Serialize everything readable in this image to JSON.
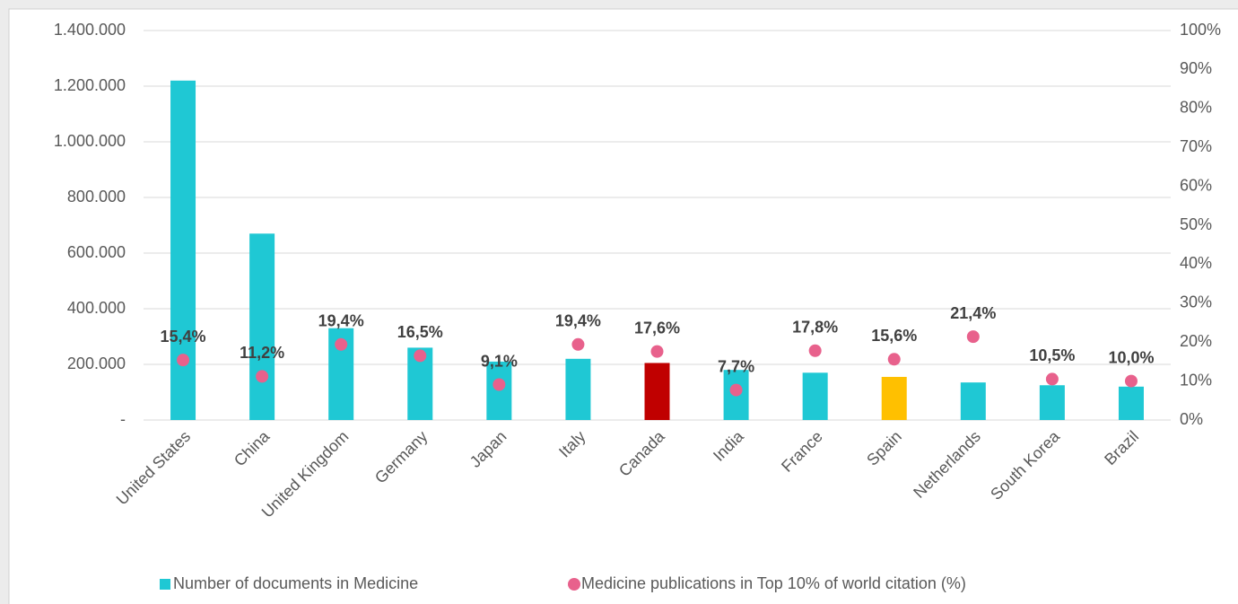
{
  "chart_data": {
    "type": "bar",
    "categories": [
      "United States",
      "China",
      "United Kingdom",
      "Germany",
      "Japan",
      "Italy",
      "Canada",
      "India",
      "France",
      "Spain",
      "Netherlands",
      "South Korea",
      "Brazil"
    ],
    "series": [
      {
        "name": "Number of documents in Medicine",
        "type": "bar",
        "color": "#1fc8d4",
        "colors": [
          "#1fc8d4",
          "#1fc8d4",
          "#1fc8d4",
          "#1fc8d4",
          "#1fc8d4",
          "#1fc8d4",
          "#c00000",
          "#1fc8d4",
          "#1fc8d4",
          "#ffc000",
          "#1fc8d4",
          "#1fc8d4",
          "#1fc8d4"
        ],
        "values": [
          1220000,
          670000,
          330000,
          260000,
          210000,
          220000,
          205000,
          180000,
          170000,
          155000,
          135000,
          125000,
          120000
        ]
      },
      {
        "name": "Medicine publications in Top 10% of world citation (%)",
        "type": "scatter",
        "axis": "y2",
        "color": "#e8618c",
        "values": [
          15.4,
          11.2,
          19.4,
          16.5,
          9.1,
          19.4,
          17.6,
          7.7,
          17.8,
          15.6,
          21.4,
          10.5,
          10.0
        ],
        "value_labels": [
          "15,4%",
          "11,2%",
          "19,4%",
          "16,5%",
          "9,1%",
          "19,4%",
          "17,6%",
          "7,7%",
          "17,8%",
          "15,6%",
          "21,4%",
          "10,5%",
          "10,0%"
        ]
      }
    ],
    "ylim": [
      0,
      1400000
    ],
    "yticks": [
      {
        "value": 0,
        "label": "-"
      },
      {
        "value": 200000,
        "label": "200.000"
      },
      {
        "value": 400000,
        "label": "400.000"
      },
      {
        "value": 600000,
        "label": "600.000"
      },
      {
        "value": 800000,
        "label": "800.000"
      },
      {
        "value": 1000000,
        "label": "1.000.000"
      },
      {
        "value": 1200000,
        "label": "1.200.000"
      },
      {
        "value": 1400000,
        "label": "1.400.000"
      }
    ],
    "y2lim": [
      0,
      100
    ],
    "y2ticks": [
      {
        "value": 0,
        "label": "0%"
      },
      {
        "value": 10,
        "label": "10%"
      },
      {
        "value": 20,
        "label": "20%"
      },
      {
        "value": 30,
        "label": "30%"
      },
      {
        "value": 40,
        "label": "40%"
      },
      {
        "value": 50,
        "label": "50%"
      },
      {
        "value": 60,
        "label": "60%"
      },
      {
        "value": 70,
        "label": "70%"
      },
      {
        "value": 80,
        "label": "80%"
      },
      {
        "value": 90,
        "label": "90%"
      },
      {
        "value": 100,
        "label": "100%"
      }
    ],
    "grid": true,
    "legend": "bottom"
  }
}
